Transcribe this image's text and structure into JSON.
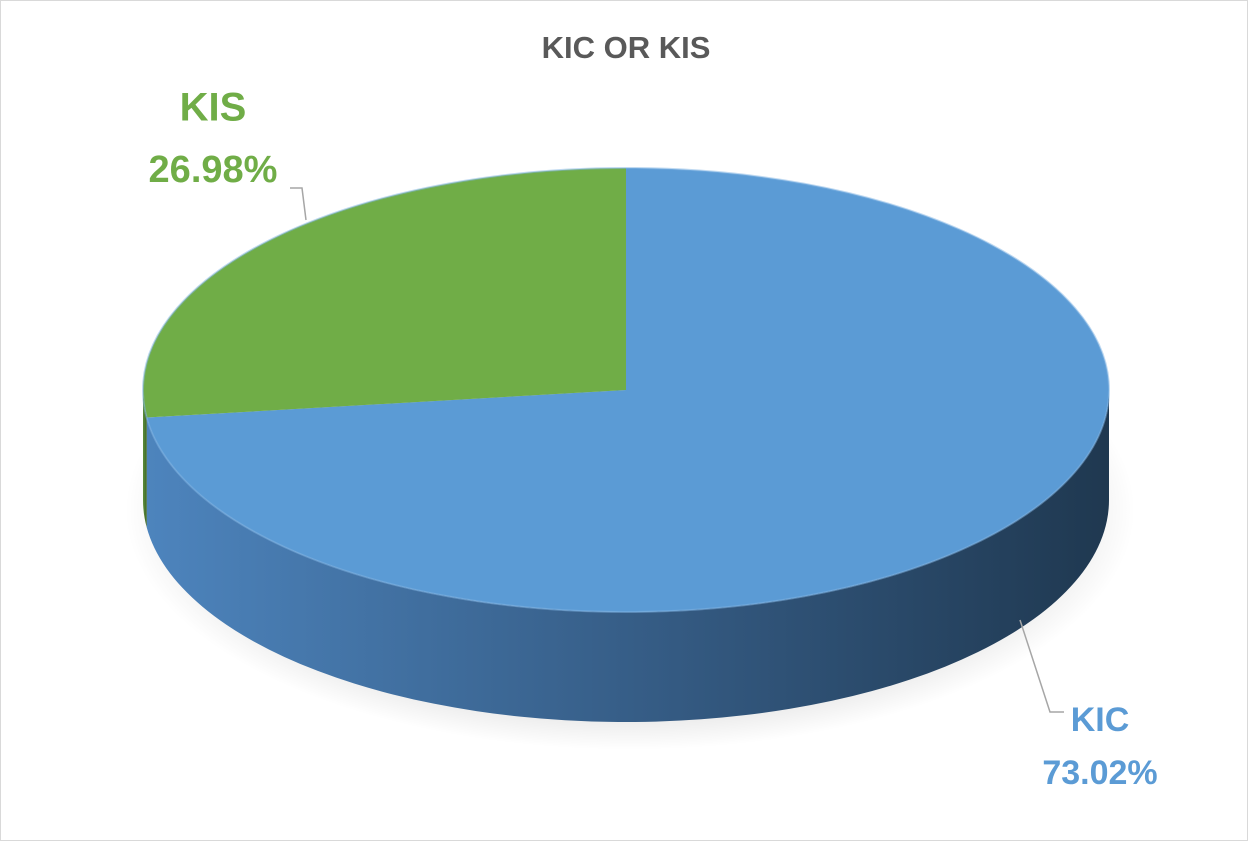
{
  "chart_data": {
    "type": "pie",
    "title": "KIC OR KIS",
    "categories": [
      "KIC",
      "KIS"
    ],
    "values": [
      73.02,
      26.98
    ],
    "value_labels": [
      "73.02%",
      "26.98%"
    ],
    "colors": [
      "#5b9bd5",
      "#70ad47"
    ]
  }
}
